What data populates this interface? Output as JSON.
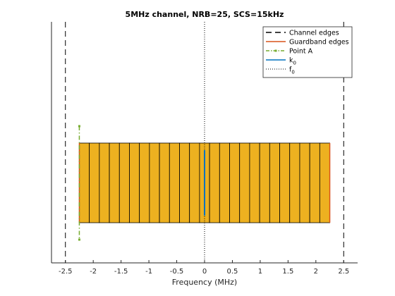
{
  "chart_data": {
    "type": "bar",
    "title": "5MHz channel, NRB=25, SCS=15kHz",
    "xlabel": "Frequency (MHz)",
    "ylabel": "",
    "xlim": [
      -2.75,
      2.75
    ],
    "xticks": [
      -2.5,
      -2,
      -1.5,
      -1,
      -0.5,
      0,
      0.5,
      1,
      1.5,
      2,
      2.5
    ],
    "xtick_labels": [
      "-2.5",
      "-2",
      "-1.5",
      "-1",
      "-0.5",
      "0",
      "0.5",
      "1",
      "1.5",
      "2",
      "2.5"
    ],
    "grid": false,
    "legend_position": "top-right",
    "resource_blocks": {
      "count": 25,
      "start": -2.25,
      "end": 2.25,
      "width": 0.18,
      "fill_color": "#EDB120",
      "edge_color": "#000000"
    },
    "lines": {
      "channel_edges": [
        -2.5,
        2.5
      ],
      "guardband_edges": [
        -2.25,
        2.25
      ],
      "point_a": -2.25,
      "k0": 0,
      "f0": 0
    },
    "legend": [
      {
        "key": "channel_edges",
        "label": "Channel edges",
        "color": "#000000",
        "style": "dashed"
      },
      {
        "key": "guardband_edges",
        "label": "Guardband edges",
        "color": "#D95319",
        "style": "solid"
      },
      {
        "key": "point_a",
        "label": "Point A",
        "color": "#77AC30",
        "style": "dash-dot-marker"
      },
      {
        "key": "k0",
        "label": "k",
        "sub": "0",
        "color": "#0072BD",
        "style": "solid"
      },
      {
        "key": "f0",
        "label": "f",
        "sub": "0",
        "color": "#000000",
        "style": "dotted"
      }
    ]
  }
}
